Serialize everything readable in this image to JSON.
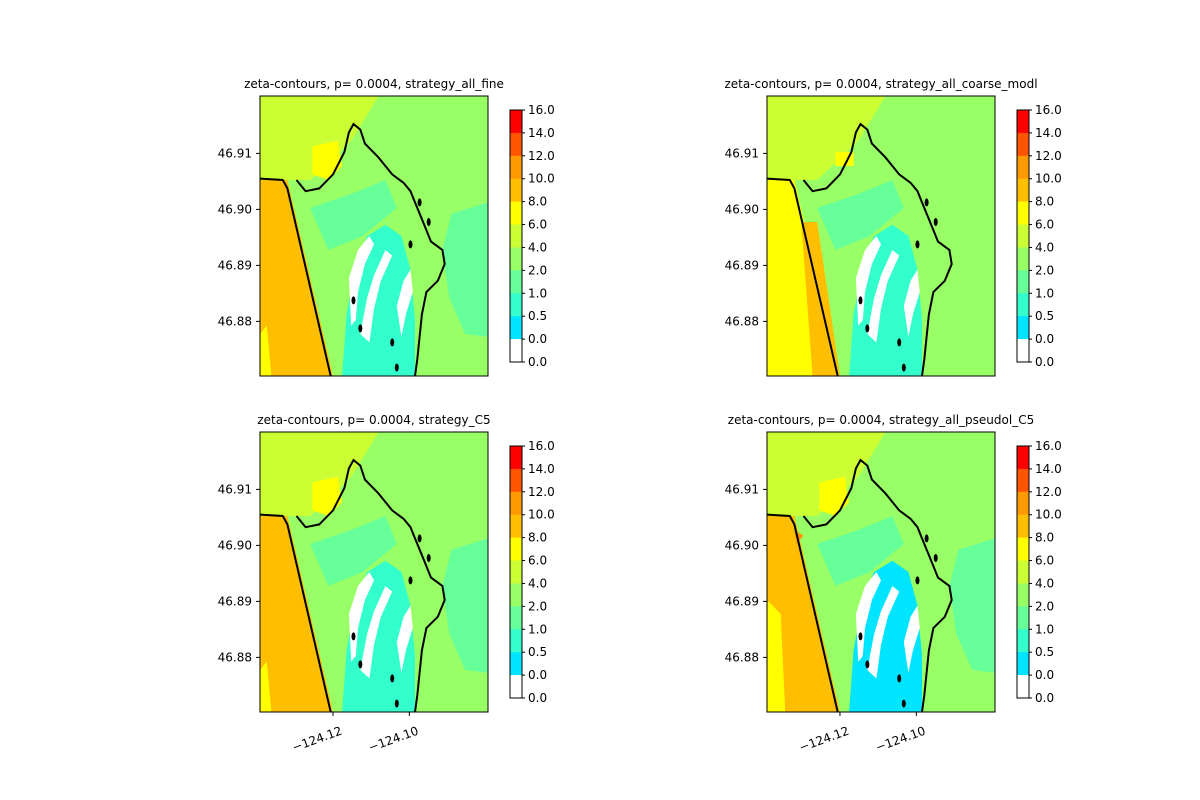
{
  "chart_data": [
    {
      "type": "heatmap",
      "title": "zeta-contours, p= 0.0004, strategy_all_fine",
      "yticks": [
        "46.91",
        "46.90",
        "46.89",
        "46.88"
      ],
      "xticks": [],
      "colorbar_ticks": [
        "16.0",
        "14.0",
        "12.0",
        "10.0",
        "8.0",
        "6.0",
        "4.0",
        "2.0",
        "1.0",
        "0.5",
        "0.0",
        "0.0"
      ],
      "variant": "fine"
    },
    {
      "type": "heatmap",
      "title": "zeta-contours, p= 0.0004, strategy_all_coarse_modl",
      "yticks": [
        "46.91",
        "46.90",
        "46.89",
        "46.88"
      ],
      "xticks": [],
      "colorbar_ticks": [
        "16.0",
        "14.0",
        "12.0",
        "10.0",
        "8.0",
        "6.0",
        "4.0",
        "2.0",
        "1.0",
        "0.5",
        "0.0",
        "0.0"
      ],
      "variant": "coarse"
    },
    {
      "type": "heatmap",
      "title": "zeta-contours, p= 0.0004, strategy_C5",
      "yticks": [
        "46.91",
        "46.90",
        "46.89",
        "46.88"
      ],
      "xticks": [
        "−124.12",
        "−124.10"
      ],
      "colorbar_ticks": [
        "16.0",
        "14.0",
        "12.0",
        "10.0",
        "8.0",
        "6.0",
        "4.0",
        "2.0",
        "1.0",
        "0.5",
        "0.0",
        "0.0"
      ],
      "variant": "fine"
    },
    {
      "type": "heatmap",
      "title": "zeta-contours, p= 0.0004, strategy_all_pseudol_C5",
      "yticks": [
        "46.91",
        "46.90",
        "46.89",
        "46.88"
      ],
      "xticks": [
        "−124.12",
        "−124.10"
      ],
      "colorbar_ticks": [
        "16.0",
        "14.0",
        "12.0",
        "10.0",
        "8.0",
        "6.0",
        "4.0",
        "2.0",
        "1.0",
        "0.5",
        "0.0",
        "0.0"
      ],
      "variant": "pseudo"
    }
  ],
  "colors": {
    "band_0_0": "#ffffff",
    "band_0_05": "#00e5ff",
    "band_05_1": "#33ffcc",
    "band_1_2": "#66ff99",
    "band_2_4": "#99ff66",
    "band_4_6": "#ccff33",
    "band_6_8": "#ffff00",
    "band_8_10": "#ffbf00",
    "band_10_12": "#ff9900",
    "band_12_14": "#ff5500",
    "band_14_16": "#ff0000"
  }
}
